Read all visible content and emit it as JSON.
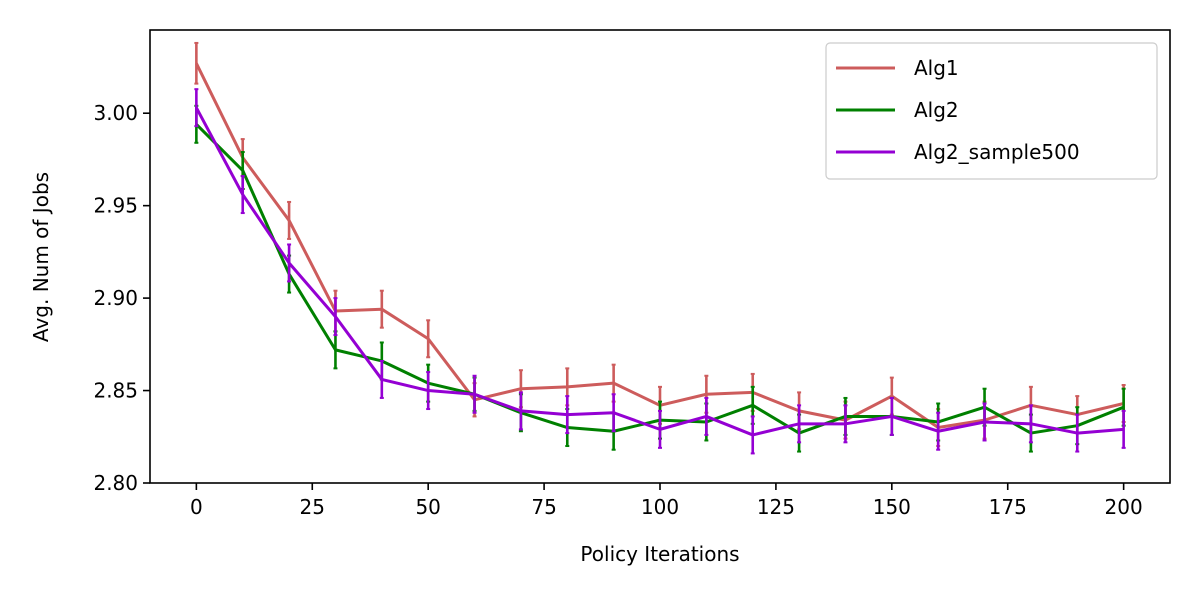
{
  "chart_data": {
    "type": "line",
    "xlabel": "Policy Iterations",
    "ylabel": "Avg. Num of Jobs",
    "xlim": [
      -10,
      210
    ],
    "ylim": [
      2.8,
      3.045
    ],
    "xticks": [
      0,
      25,
      50,
      75,
      100,
      125,
      150,
      175,
      200
    ],
    "yticks": [
      2.8,
      2.85,
      2.9,
      2.95,
      3.0
    ],
    "ytick_labels": [
      "2.80",
      "2.85",
      "2.90",
      "2.95",
      "3.00"
    ],
    "grid": false,
    "legend_position": "top-right",
    "x": [
      0,
      10,
      20,
      30,
      40,
      50,
      60,
      70,
      80,
      90,
      100,
      110,
      120,
      130,
      140,
      150,
      160,
      170,
      180,
      190,
      200
    ],
    "series": [
      {
        "name": "Alg1",
        "color": "#cd5c5c",
        "values": [
          3.027,
          2.976,
          2.942,
          2.893,
          2.894,
          2.878,
          2.845,
          2.851,
          2.852,
          2.854,
          2.842,
          2.848,
          2.849,
          2.839,
          2.834,
          2.847,
          2.83,
          2.834,
          2.842,
          2.837,
          2.843
        ],
        "errors": [
          0.011,
          0.01,
          0.01,
          0.011,
          0.01,
          0.01,
          0.009,
          0.01,
          0.01,
          0.01,
          0.01,
          0.01,
          0.01,
          0.01,
          0.01,
          0.01,
          0.01,
          0.01,
          0.01,
          0.01,
          0.01
        ]
      },
      {
        "name": "Alg2",
        "color": "#008000",
        "values": [
          2.994,
          2.969,
          2.913,
          2.872,
          2.866,
          2.854,
          2.848,
          2.838,
          2.83,
          2.828,
          2.834,
          2.833,
          2.842,
          2.827,
          2.836,
          2.836,
          2.833,
          2.841,
          2.827,
          2.831,
          2.841
        ],
        "errors": [
          0.01,
          0.01,
          0.01,
          0.01,
          0.01,
          0.01,
          0.009,
          0.01,
          0.01,
          0.01,
          0.01,
          0.01,
          0.01,
          0.01,
          0.01,
          0.01,
          0.01,
          0.01,
          0.01,
          0.01,
          0.01
        ]
      },
      {
        "name": "Alg2_sample500",
        "color": "#9400d3",
        "values": [
          3.003,
          2.956,
          2.919,
          2.89,
          2.856,
          2.85,
          2.848,
          2.839,
          2.837,
          2.838,
          2.829,
          2.836,
          2.826,
          2.832,
          2.832,
          2.836,
          2.828,
          2.833,
          2.832,
          2.827,
          2.829
        ],
        "errors": [
          0.01,
          0.01,
          0.01,
          0.01,
          0.01,
          0.01,
          0.01,
          0.01,
          0.01,
          0.01,
          0.01,
          0.01,
          0.01,
          0.01,
          0.01,
          0.01,
          0.01,
          0.01,
          0.01,
          0.01,
          0.01
        ]
      }
    ]
  }
}
